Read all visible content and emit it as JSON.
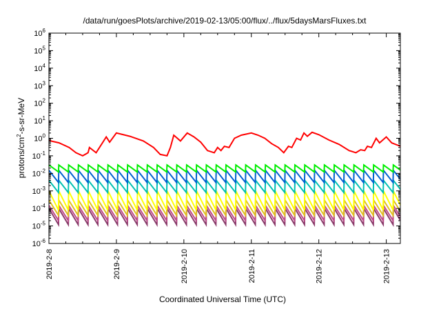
{
  "chart_data": {
    "type": "line",
    "title": "/data/run/goesPlots/archive/2019-02-13/05:00/flux/../flux/5daysMarsFluxes.txt",
    "xlabel": "Coordinated Universal Time (UTC)",
    "ylabel": {
      "prefix": "protons/cm",
      "superscript": "2",
      "suffix": "-s-sr-MeV"
    },
    "y_scale": "log",
    "ylim": [
      1e-06,
      1000000.0
    ],
    "y_tick_exponents": [
      -6,
      -5,
      -4,
      -3,
      -2,
      -1,
      0,
      1,
      2,
      3,
      4,
      5,
      6
    ],
    "y_tick_base": "10",
    "xlim": [
      "2019-02-08T00:00",
      "2019-02-13T05:00"
    ],
    "x_ticks": [
      "2019-2-8",
      "2019-2-9",
      "2019-2-10",
      "2019-2-11",
      "2019-2-12",
      "2019-2-13"
    ],
    "grid": false,
    "legend": "none",
    "series": [
      {
        "color": "#ff0000",
        "style": "sawtooth",
        "x_days": [
          0.0,
          0.15,
          0.3,
          0.4,
          0.5,
          0.58,
          0.6,
          0.7,
          0.75,
          0.85,
          0.9,
          1.0,
          1.2,
          1.4,
          1.55,
          1.65,
          1.75,
          1.8,
          1.85,
          1.95,
          2.05,
          2.15,
          2.25,
          2.35,
          2.45,
          2.5,
          2.55,
          2.6,
          2.67,
          2.75,
          2.85,
          3.0,
          3.1,
          3.2,
          3.3,
          3.4,
          3.48,
          3.55,
          3.6,
          3.67,
          3.73,
          3.78,
          3.83,
          3.9,
          4.0,
          4.15,
          4.3,
          4.45,
          4.55,
          4.62,
          4.68,
          4.72,
          4.78,
          4.85,
          4.9,
          5.0,
          5.08,
          5.21
        ],
        "y": [
          0.75,
          0.55,
          0.3,
          0.15,
          0.1,
          0.15,
          0.3,
          0.15,
          0.3,
          1.2,
          0.6,
          2.0,
          1.3,
          0.7,
          0.3,
          0.12,
          0.1,
          0.3,
          1.5,
          0.7,
          2.0,
          1.2,
          0.6,
          0.2,
          0.15,
          0.3,
          0.2,
          0.35,
          0.3,
          1.0,
          1.5,
          2.0,
          1.5,
          1.0,
          0.5,
          0.3,
          0.15,
          0.35,
          0.3,
          1.0,
          0.8,
          2.0,
          1.3,
          2.2,
          1.6,
          0.8,
          0.45,
          0.2,
          0.15,
          0.22,
          0.2,
          0.35,
          0.3,
          1.0,
          0.55,
          1.2,
          0.55,
          0.35
        ]
      },
      {
        "color": "#00ee00",
        "style": "sawtooth",
        "peak": 0.03,
        "trough": 0.012,
        "period_hours": 3.5
      },
      {
        "color": "#0060d0",
        "style": "sawtooth",
        "peak": 0.015,
        "trough": 0.003,
        "period_hours": 3.5
      },
      {
        "color": "#00c0b0",
        "style": "sawtooth",
        "peak": 0.004,
        "trough": 0.0008,
        "period_hours": 3.5
      },
      {
        "color": "#ffff00",
        "style": "sawtooth",
        "peak": 0.001,
        "trough": 8e-05,
        "period_hours": 3.5
      },
      {
        "color": "#e0c020",
        "style": "sawtooth",
        "peak": 0.0003,
        "trough": 4e-05,
        "period_hours": 3.5
      },
      {
        "color": "#c04a8a",
        "style": "sawtooth",
        "peak": 0.00015,
        "trough": 2e-05,
        "period_hours": 3.5
      },
      {
        "color": "#8a3a6a",
        "style": "sawtooth",
        "peak": 0.0001,
        "trough": 1.2e-05,
        "period_hours": 3.5
      }
    ]
  }
}
